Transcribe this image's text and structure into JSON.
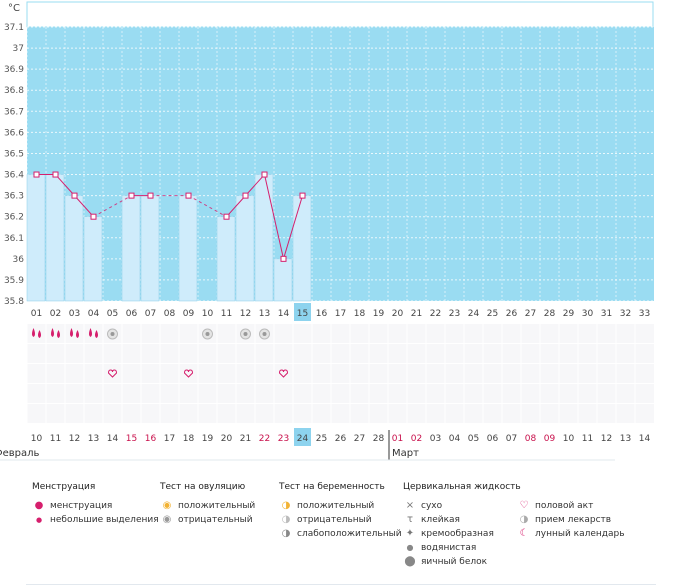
{
  "unit": "°C",
  "colors": {
    "accent": "#d61f6d",
    "chart_bg": "#9adcf2",
    "bar_fill": "#cfecfb",
    "bar_stroke": "#8dcfe9",
    "selected_day": "#8dd3ee",
    "month_start": "#c8104b"
  },
  "chart_data": {
    "type": "line",
    "title": "",
    "xlabel": "",
    "ylabel": "°C",
    "ylim": [
      35.8,
      37.1
    ],
    "y_ticks": [
      "35.8",
      "35.9",
      "36",
      "36.1",
      "36.2",
      "36.3",
      "36.4",
      "36.5",
      "36.6",
      "36.7",
      "36.8",
      "36.9",
      "37",
      "37.1"
    ],
    "x": [
      "01",
      "02",
      "03",
      "04",
      "05",
      "06",
      "07",
      "08",
      "09",
      "10",
      "11",
      "12",
      "13",
      "14",
      "15",
      "16",
      "17",
      "18",
      "19",
      "20",
      "21",
      "22",
      "23",
      "24",
      "25",
      "26",
      "27",
      "28",
      "29",
      "30",
      "31",
      "32",
      "33"
    ],
    "values": [
      36.4,
      36.4,
      36.3,
      36.2,
      null,
      36.3,
      36.3,
      null,
      36.3,
      null,
      36.2,
      36.3,
      36.4,
      36.0,
      36.3,
      null,
      null,
      null,
      null,
      null,
      null,
      null,
      null,
      null,
      null,
      null,
      null,
      null,
      null,
      null,
      null,
      null,
      null
    ],
    "grid": true,
    "selected_cycle_day": "15"
  },
  "calendar_dates": [
    {
      "d": "10",
      "red": false
    },
    {
      "d": "11",
      "red": false
    },
    {
      "d": "12",
      "red": false
    },
    {
      "d": "13",
      "red": false
    },
    {
      "d": "14",
      "red": false
    },
    {
      "d": "15",
      "red": true
    },
    {
      "d": "16",
      "red": true
    },
    {
      "d": "17",
      "red": false
    },
    {
      "d": "18",
      "red": false
    },
    {
      "d": "19",
      "red": false
    },
    {
      "d": "20",
      "red": false
    },
    {
      "d": "21",
      "red": false
    },
    {
      "d": "22",
      "red": true
    },
    {
      "d": "23",
      "red": true
    },
    {
      "d": "24",
      "red": false,
      "selected": true
    },
    {
      "d": "25",
      "red": false
    },
    {
      "d": "26",
      "red": false
    },
    {
      "d": "27",
      "red": false
    },
    {
      "d": "28",
      "red": false
    },
    {
      "d": "01",
      "red": true
    },
    {
      "d": "02",
      "red": true
    },
    {
      "d": "03",
      "red": false
    },
    {
      "d": "04",
      "red": false
    },
    {
      "d": "05",
      "red": false
    },
    {
      "d": "06",
      "red": false
    },
    {
      "d": "07",
      "red": false
    },
    {
      "d": "08",
      "red": true
    },
    {
      "d": "09",
      "red": true
    },
    {
      "d": "10",
      "red": false
    },
    {
      "d": "11",
      "red": false
    },
    {
      "d": "12",
      "red": false
    },
    {
      "d": "13",
      "red": false
    },
    {
      "d": "14",
      "red": false
    }
  ],
  "months": {
    "feb": "Февраль",
    "mar": "Март"
  },
  "markers": {
    "menstruation_days": [
      0,
      1,
      2,
      3
    ],
    "ovulation_negative_days": [
      4,
      9,
      11,
      12
    ],
    "intercourse_days": [
      4,
      8,
      13
    ]
  },
  "legend": {
    "menstruation": {
      "title": "Менструация",
      "items": [
        {
          "label": "менструация",
          "icon": "menstruation-drop-icon"
        },
        {
          "label": "небольшие выделения",
          "icon": "small-drop-icon"
        }
      ]
    },
    "ovulation_test": {
      "title": "Тест на овуляцию",
      "items": [
        {
          "label": "положительный",
          "icon": "ovulation-positive-icon"
        },
        {
          "label": "отрицательный",
          "icon": "ovulation-negative-icon"
        }
      ]
    },
    "pregnancy_test": {
      "title": "Тест на беременность",
      "items": [
        {
          "label": "положительный",
          "icon": "pregnancy-positive-icon"
        },
        {
          "label": "отрицательный",
          "icon": "pregnancy-negative-icon"
        },
        {
          "label": "слабоположительный",
          "icon": "pregnancy-weak-icon"
        }
      ]
    },
    "cervical": {
      "title": "Цервикальная жидкость",
      "items": [
        {
          "label": "сухо",
          "icon": "dry-cross-icon"
        },
        {
          "label": "клейкая",
          "icon": "sticky-icon"
        },
        {
          "label": "кремообразная",
          "icon": "creamy-icon"
        },
        {
          "label": "водянистая",
          "icon": "watery-drop-icon"
        },
        {
          "label": "яичный белок",
          "icon": "egg-white-icon"
        }
      ]
    },
    "other": {
      "items": [
        {
          "label": "половой акт",
          "icon": "heart-icon"
        },
        {
          "label": "прием лекарств",
          "icon": "pill-icon"
        },
        {
          "label": "лунный календарь",
          "icon": "moon-icon"
        }
      ]
    }
  }
}
